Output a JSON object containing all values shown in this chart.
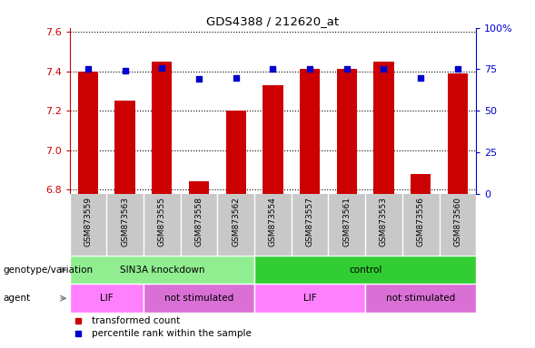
{
  "title": "GDS4388 / 212620_at",
  "samples": [
    "GSM873559",
    "GSM873563",
    "GSM873555",
    "GSM873558",
    "GSM873562",
    "GSM873554",
    "GSM873557",
    "GSM873561",
    "GSM873553",
    "GSM873556",
    "GSM873560"
  ],
  "red_values": [
    7.4,
    7.25,
    7.45,
    6.84,
    7.2,
    7.33,
    7.41,
    7.41,
    7.45,
    6.88,
    7.39
  ],
  "blue_values": [
    75,
    74,
    76,
    69,
    70,
    75,
    75,
    75,
    75,
    70,
    75
  ],
  "ylim_left": [
    6.78,
    7.62
  ],
  "ylim_right": [
    0,
    100
  ],
  "yticks_left": [
    6.8,
    7.0,
    7.2,
    7.4,
    7.6
  ],
  "yticks_right": [
    0,
    25,
    50,
    75,
    100
  ],
  "ytick_labels_right": [
    "0",
    "25",
    "50",
    "75",
    "100%"
  ],
  "groups": [
    {
      "label": "SIN3A knockdown",
      "start": 0,
      "end": 5,
      "color": "#90EE90"
    },
    {
      "label": "control",
      "start": 5,
      "end": 11,
      "color": "#32CD32"
    }
  ],
  "agents": [
    {
      "label": "LIF",
      "start": 0,
      "end": 2,
      "color": "#FF80FF"
    },
    {
      "label": "not stimulated",
      "start": 2,
      "end": 5,
      "color": "#DA70D6"
    },
    {
      "label": "LIF",
      "start": 5,
      "end": 8,
      "color": "#FF80FF"
    },
    {
      "label": "not stimulated",
      "start": 8,
      "end": 11,
      "color": "#DA70D6"
    }
  ],
  "bar_color": "#CC0000",
  "dot_color": "#0000CC",
  "genotype_label": "genotype/variation",
  "agent_label": "agent",
  "legend_red": "transformed count",
  "legend_blue": "percentile rank within the sample",
  "bar_width": 0.55,
  "sample_bg_color": "#C8C8C8",
  "tick_color_left": "#CC0000",
  "tick_color_right": "#0000CC"
}
